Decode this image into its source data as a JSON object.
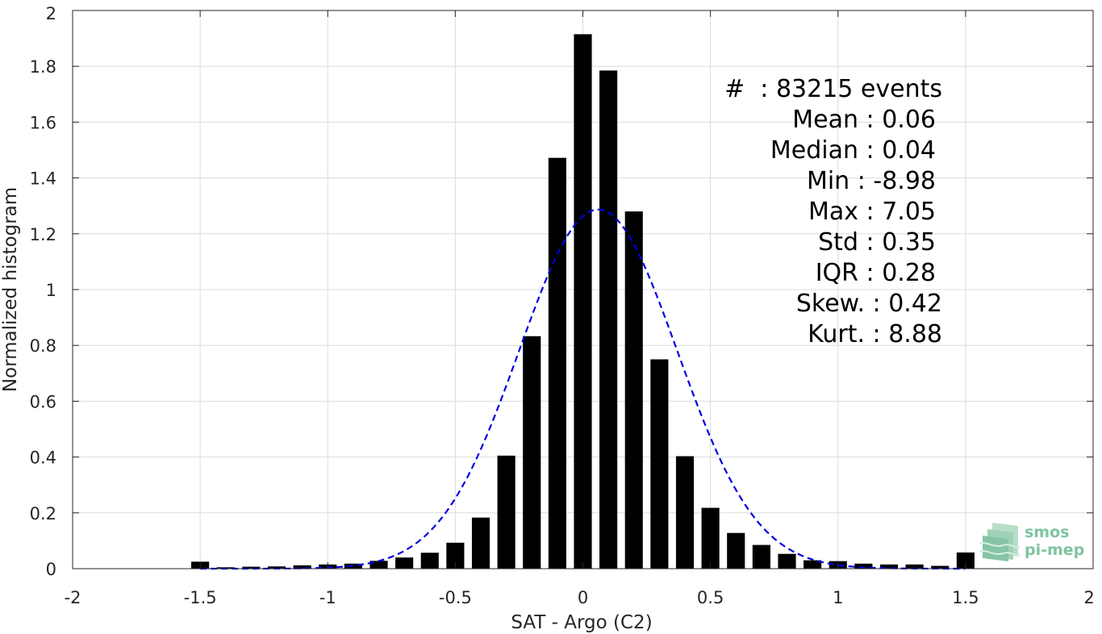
{
  "chart_data": {
    "type": "bar",
    "xlabel": "SAT - Argo (C2)",
    "ylabel": "Normalized histogram",
    "xlim": [
      -2,
      2
    ],
    "ylim": [
      0,
      2
    ],
    "xticks": [
      -2,
      -1.5,
      -1,
      -0.5,
      0,
      0.5,
      1,
      1.5,
      2
    ],
    "xtick_labels": [
      "-2",
      "-1.5",
      "-1",
      "-0.5",
      "0",
      "0.5",
      "1",
      "1.5",
      "2"
    ],
    "yticks": [
      0,
      0.2,
      0.4,
      0.6,
      0.8,
      1,
      1.2,
      1.4,
      1.6,
      1.8,
      2
    ],
    "ytick_labels": [
      "0",
      "0.2",
      "0.4",
      "0.6",
      "0.8",
      "1",
      "1.2",
      "1.4",
      "1.6",
      "1.8",
      "2"
    ],
    "grid": true,
    "bar_color": "#000000",
    "bar_width": 0.07,
    "bins": [
      -1.5,
      -1.4,
      -1.3,
      -1.2,
      -1.1,
      -1.0,
      -0.9,
      -0.8,
      -0.7,
      -0.6,
      -0.5,
      -0.4,
      -0.3,
      -0.2,
      -0.1,
      0.0,
      0.1,
      0.2,
      0.3,
      0.4,
      0.5,
      0.6,
      0.7,
      0.8,
      0.9,
      1.0,
      1.1,
      1.2,
      1.3,
      1.4,
      1.5
    ],
    "values": [
      0.025,
      0.005,
      0.007,
      0.008,
      0.012,
      0.015,
      0.018,
      0.028,
      0.04,
      0.057,
      0.093,
      0.183,
      0.405,
      0.833,
      1.472,
      1.915,
      1.785,
      1.28,
      0.75,
      0.403,
      0.218,
      0.128,
      0.085,
      0.053,
      0.03,
      0.027,
      0.018,
      0.015,
      0.015,
      0.01,
      0.058
    ],
    "fit_curve": {
      "style": "dashed",
      "color": "#0000e0",
      "mean": 0.06,
      "std": 0.31,
      "x_range": [
        -1.5,
        1.5
      ]
    }
  },
  "stats": [
    {
      "label": "#",
      "sep": ":",
      "value": "83215 events"
    },
    {
      "label": "Mean",
      "sep": ":",
      "value": "0.06"
    },
    {
      "label": "Median",
      "sep": ":",
      "value": "0.04"
    },
    {
      "label": "Min",
      "sep": ":",
      "value": "-8.98"
    },
    {
      "label": "Max",
      "sep": ":",
      "value": "7.05"
    },
    {
      "label": "Std",
      "sep": ":",
      "value": "0.35"
    },
    {
      "label": "IQR",
      "sep": ":",
      "value": "0.28"
    },
    {
      "label": "Skew.",
      "sep": ":",
      "value": "0.42"
    },
    {
      "label": "Kurt.",
      "sep": ":",
      "value": "8.88"
    }
  ],
  "logo": {
    "line1": "smos",
    "line2": "pi-mep",
    "color": "#7fc4a0"
  }
}
